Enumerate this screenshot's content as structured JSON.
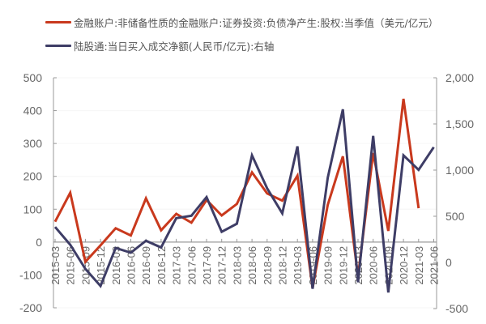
{
  "legend": {
    "series1": "金融账户:非储备性质的金融账户:证券投资:负债净产生:股权:当季值（美元/亿元）",
    "series2": "陆股通:当日买入成交净额(人民币/亿元):右轴"
  },
  "colors": {
    "series1": "#c9391d",
    "series2": "#3e3d66",
    "axis": "#9a9a9a",
    "text": "#666666"
  },
  "chart_data": {
    "type": "line",
    "title": "",
    "x": [
      "2015-03",
      "2015-06",
      "2015-09",
      "2015-12",
      "2016-03",
      "2016-06",
      "2016-09",
      "2016-12",
      "2017-03",
      "2017-06",
      "2017-09",
      "2017-12",
      "2018-03",
      "2018-06",
      "2018-09",
      "2018-12",
      "2019-03",
      "2019-06",
      "2019-09",
      "2019-12",
      "2020-03",
      "2020-06",
      "2020-09",
      "2020-12",
      "2021-03",
      "2021-06"
    ],
    "series": [
      {
        "name": "金融账户:非储备性质的金融账户:证券投资:负债净产生:股权:当季值（美元/亿元）",
        "axis": "left",
        "values": [
          62,
          150,
          -60,
          -10,
          42,
          20,
          133,
          36,
          86,
          59,
          128,
          81,
          116,
          212,
          148,
          126,
          202,
          -140,
          113,
          261,
          -105,
          271,
          34,
          436,
          103,
          null
        ]
      },
      {
        "name": "陆股通:当日买入成交净额(人民币/亿元):右轴",
        "axis": "right",
        "values": [
          384,
          192,
          -70,
          -255,
          157,
          105,
          235,
          162,
          480,
          506,
          707,
          332,
          419,
          1160,
          803,
          532,
          1257,
          -285,
          916,
          1658,
          -215,
          1370,
          -325,
          1160,
          1003,
          1248
        ]
      }
    ],
    "left_axis": {
      "ticks": [
        "500",
        "400",
        "300",
        "200",
        "100",
        "0",
        "-100",
        "-200"
      ],
      "range": [
        -200,
        500
      ]
    },
    "right_axis": {
      "ticks": [
        "2,000",
        "1,500",
        "1,000",
        "500",
        "0",
        "-500"
      ],
      "range": [
        -500,
        2000
      ]
    },
    "xlabel": "",
    "ylabel": "",
    "grid": true,
    "legend_position": "top"
  }
}
